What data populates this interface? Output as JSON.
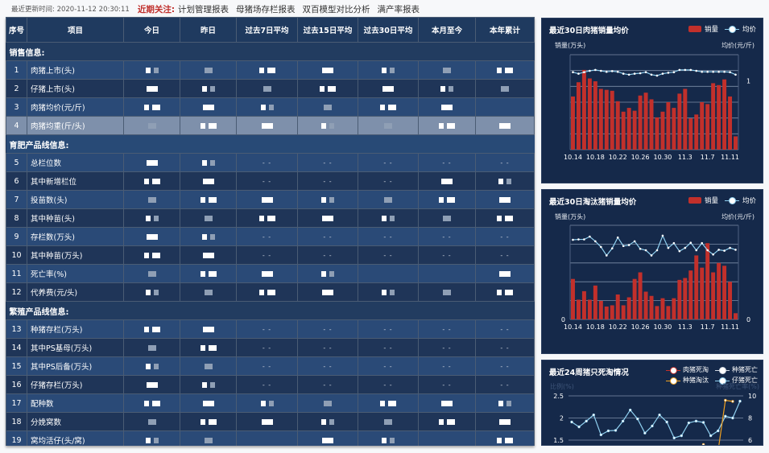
{
  "topbar": {
    "update_label": "最近更新时间: 2020-11-12 20:30:11",
    "focus_label": "近期关注:",
    "links": [
      "计划管理报表",
      "母猪场存栏报表",
      "双百模型对比分析",
      "满产率报表"
    ]
  },
  "table": {
    "headers": [
      "序号",
      "项目",
      "今日",
      "昨日",
      "过去7日平均",
      "过去15日平均",
      "过去30日平均",
      "本月至今",
      "本年累计"
    ],
    "sections": [
      {
        "title": "销售信息:",
        "rows": [
          {
            "no": "1",
            "item": "肉猪上市(头)",
            "cells": [
              null,
              null,
              null,
              null,
              null,
              null,
              null
            ]
          },
          {
            "no": "2",
            "item": "仔猪上市(头)",
            "cells": [
              null,
              null,
              null,
              null,
              null,
              null,
              null
            ]
          },
          {
            "no": "3",
            "item": "肉猪均价(元/斤)",
            "cells": [
              null,
              null,
              null,
              null,
              null,
              null,
              ""
            ]
          },
          {
            "no": "4",
            "item": "肉猪均重(斤/头)",
            "cells": [
              null,
              null,
              null,
              null,
              null,
              null,
              null
            ],
            "highlighted": true
          }
        ]
      },
      {
        "title": "育肥产品线信息:",
        "rows": [
          {
            "no": "5",
            "item": "总栏位数",
            "cells": [
              null,
              null,
              "- -",
              "- -",
              "- -",
              "- -",
              "- -"
            ]
          },
          {
            "no": "6",
            "item": "其中新增栏位",
            "cells": [
              null,
              null,
              "- -",
              "- -",
              "- -",
              null,
              null
            ]
          },
          {
            "no": "7",
            "item": "投苗数(头)",
            "cells": [
              null,
              null,
              null,
              null,
              null,
              null,
              null
            ]
          },
          {
            "no": "8",
            "item": "其中种苗(头)",
            "cells": [
              null,
              null,
              null,
              null,
              null,
              null,
              null
            ]
          },
          {
            "no": "9",
            "item": "存栏数(万头)",
            "cells": [
              null,
              null,
              "- -",
              "- -",
              "- -",
              "- -",
              "- -"
            ]
          },
          {
            "no": "10",
            "item": "其中种苗(万头)",
            "cells": [
              null,
              null,
              "- -",
              "- -",
              "- -",
              "- -",
              "- -"
            ]
          },
          {
            "no": "11",
            "item": "死亡率(%)",
            "cells": [
              null,
              null,
              null,
              null,
              "",
              "",
              null
            ]
          },
          {
            "no": "12",
            "item": "代养费(元/头)",
            "cells": [
              null,
              null,
              null,
              null,
              null,
              null,
              null
            ]
          }
        ]
      },
      {
        "title": "繁殖产品线信息:",
        "rows": [
          {
            "no": "13",
            "item": "种猪存栏(万头)",
            "cells": [
              null,
              null,
              "- -",
              "- -",
              "- -",
              "- -",
              "- -"
            ]
          },
          {
            "no": "14",
            "item": "其中PS基母(万头)",
            "cells": [
              null,
              null,
              "- -",
              "- -",
              "- -",
              "- -",
              "- -"
            ]
          },
          {
            "no": "15",
            "item": "其中PS后备(万头)",
            "cells": [
              null,
              null,
              "- -",
              "- -",
              "- -",
              "- -",
              "- -"
            ]
          },
          {
            "no": "16",
            "item": "仔猪存栏(万头)",
            "cells": [
              null,
              null,
              "- -",
              "- -",
              "- -",
              "- -",
              "- -"
            ]
          },
          {
            "no": "17",
            "item": "配种数",
            "cells": [
              null,
              null,
              null,
              null,
              null,
              null,
              null
            ]
          },
          {
            "no": "18",
            "item": "分娩窝数",
            "cells": [
              null,
              null,
              null,
              null,
              null,
              null,
              null
            ]
          },
          {
            "no": "19",
            "item": "窝均活仔(头/窝)",
            "cells": [
              null,
              null,
              "",
              null,
              null,
              "",
              null
            ]
          }
        ]
      }
    ]
  },
  "colors": {
    "bar": "#c2302b",
    "price_line": "#8fd0f0",
    "orange": "#f0a020",
    "panel": "#15294a"
  },
  "chart_data": [
    {
      "type": "bar+line",
      "title": "最近30日肉猪销量均价",
      "ylabel": "销量(万头)",
      "ylabel_right": "均价(元/斤)",
      "legend": [
        "销量",
        "均价"
      ],
      "legend_placement": "top-right",
      "grid": true,
      "xticks": [
        "10.14",
        "10.18",
        "10.22",
        "10.26",
        "10.30",
        "11.3",
        "11.7",
        "11.11"
      ],
      "x": [
        "10.14",
        "10.15",
        "10.16",
        "10.17",
        "10.18",
        "10.19",
        "10.20",
        "10.21",
        "10.22",
        "10.23",
        "10.24",
        "10.25",
        "10.26",
        "10.27",
        "10.28",
        "10.29",
        "10.30",
        "10.31",
        "11.1",
        "11.2",
        "11.3",
        "11.4",
        "11.5",
        "11.6",
        "11.7",
        "11.8",
        "11.9",
        "11.10",
        "11.11",
        "11.12"
      ],
      "yticks_right": [
        "1"
      ],
      "ylim": [
        0,
        10
      ],
      "series": [
        {
          "name": "销量",
          "type": "bar",
          "values": [
            5.6,
            7.1,
            8.4,
            7.5,
            7.2,
            6.4,
            6.3,
            6.2,
            5.1,
            4.0,
            4.4,
            4.1,
            5.7,
            6.0,
            5.3,
            3.4,
            4.0,
            5.0,
            4.4,
            5.9,
            6.4,
            3.3,
            3.7,
            5.0,
            4.8,
            7.0,
            6.8,
            7.4,
            5.6,
            1.4
          ]
        },
        {
          "name": "均价",
          "type": "line",
          "values": [
            8.16,
            8.0,
            8.16,
            8.3,
            8.4,
            8.3,
            8.2,
            8.27,
            8.2,
            8.0,
            7.9,
            8.0,
            8.05,
            8.16,
            7.9,
            7.8,
            8.0,
            8.1,
            8.16,
            8.4,
            8.4,
            8.4,
            8.3,
            8.2,
            8.2,
            8.2,
            8.2,
            8.2,
            8.16,
            7.9
          ]
        }
      ]
    },
    {
      "type": "bar+line",
      "title": "最近30日淘汰猪销量均价",
      "ylabel": "销量(万头)",
      "ylabel_right": "均价(元/斤)",
      "legend": [
        "销量",
        "均价"
      ],
      "legend_placement": "top-right",
      "grid": true,
      "xticks": [
        "10.14",
        "10.18",
        "10.22",
        "10.26",
        "10.30",
        "11.3",
        "11.7",
        "11.11"
      ],
      "yticks_left": [
        "0"
      ],
      "yticks_right": [
        "0"
      ],
      "ylim": [
        0,
        10
      ],
      "series": [
        {
          "name": "销量",
          "type": "bar",
          "values": [
            4.3,
            2.1,
            3.0,
            2.1,
            3.6,
            1.97,
            1.37,
            1.5,
            2.65,
            1.5,
            2.35,
            4.3,
            5.0,
            2.95,
            2.5,
            1.42,
            2.25,
            1.42,
            2.25,
            4.2,
            4.4,
            5.2,
            6.8,
            5.5,
            8.1,
            5.0,
            6.0,
            5.7,
            4.0,
            0.66
          ]
        },
        {
          "name": "均价",
          "type": "line",
          "values": [
            8.46,
            8.5,
            8.5,
            8.8,
            8.3,
            7.7,
            6.8,
            7.55,
            8.7,
            7.8,
            7.9,
            8.3,
            7.5,
            7.35,
            6.8,
            7.35,
            8.9,
            7.6,
            8.1,
            7.25,
            7.6,
            8.15,
            7.35,
            8.1,
            7.35,
            6.9,
            7.4,
            7.3,
            7.6,
            7.4
          ]
        }
      ]
    },
    {
      "type": "line",
      "title": "最近24周猪只死淘情况",
      "ylabel": "比例(%)",
      "ylabel_right": "种猪死亡率(%)",
      "legend": [
        "肉猪死淘",
        "种猪死亡",
        "种猪淘汰",
        "仔猪死亡"
      ],
      "legend_placement": "top-right",
      "grid": true,
      "yticks_left": [
        "1.5",
        "2",
        "2.5"
      ],
      "yticks_right": [
        "6",
        "8",
        "10"
      ],
      "ylim": [
        1.5,
        2.5
      ],
      "ylim_right": [
        6,
        10
      ],
      "series": [
        {
          "name": "仔猪死亡",
          "axis": "left",
          "color": "#8fd0f0",
          "values": [
            1.91,
            1.8,
            1.93,
            2.07,
            1.62,
            1.71,
            1.72,
            1.93,
            2.18,
            1.98,
            1.66,
            1.82,
            2.07,
            1.91,
            1.55,
            1.6,
            1.89,
            1.93,
            1.9,
            1.6,
            1.71,
            2.04,
            2.0,
            2.38
          ]
        },
        {
          "name": "种猪淘汰",
          "axis": "right",
          "color": "#f0a020",
          "values": [
            null,
            null,
            null,
            null,
            null,
            null,
            null,
            null,
            null,
            null,
            null,
            null,
            null,
            null,
            null,
            null,
            null,
            null,
            5.6,
            null,
            5.0,
            9.6,
            9.5,
            null
          ]
        }
      ]
    }
  ]
}
